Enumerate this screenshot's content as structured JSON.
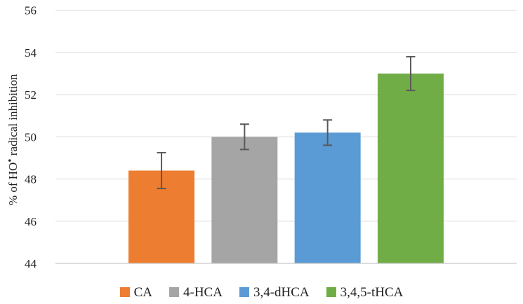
{
  "figure": {
    "background": "#FFFFFF"
  },
  "chart_data": {
    "type": "bar",
    "title": "",
    "xlabel": "",
    "ylabel": "% of HO• radical inhibition",
    "ylim": [
      44,
      56
    ],
    "yticks": [
      44,
      46,
      48,
      50,
      52,
      54,
      56
    ],
    "grid": true,
    "legend_position": "bottom",
    "categories": [
      "CA",
      "4-HCA",
      "3,4-dHCA",
      "3,4,5-tHCA"
    ],
    "series": [
      {
        "name": "CA",
        "value": 48.4,
        "error_plus": 0.85,
        "error_minus": 0.85,
        "color": "#ED7D31"
      },
      {
        "name": "4-HCA",
        "value": 50.0,
        "error_plus": 0.6,
        "error_minus": 0.6,
        "color": "#A5A5A5"
      },
      {
        "name": "3,4-dHCA",
        "value": 50.2,
        "error_plus": 0.6,
        "error_minus": 0.6,
        "color": "#5B9BD5"
      },
      {
        "name": "3,4,5-tHCA",
        "value": 53.0,
        "error_plus": 0.8,
        "error_minus": 0.8,
        "color": "#70AD47"
      }
    ],
    "styles": {
      "gridline_color": "#D9D9D9",
      "axis_line_color": "#C8C8C8",
      "error_bar_color": "#595959",
      "text_color": "#1F1F1F"
    }
  }
}
